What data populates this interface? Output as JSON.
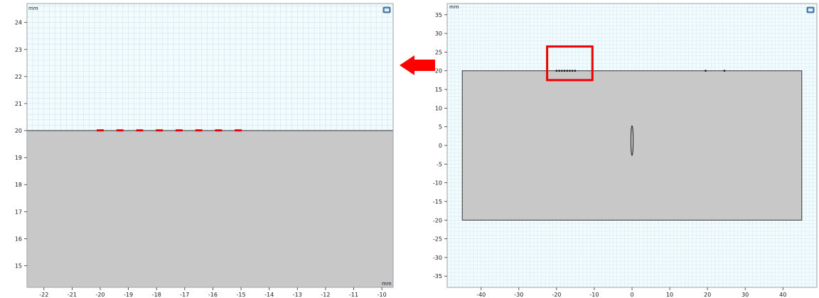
{
  "left_view": {
    "unit_top": "mm",
    "unit_bottom": "mm",
    "x_range": [
      -22.6,
      -9.6
    ],
    "y_range": [
      14.2,
      24.7
    ],
    "x_ticks": [
      "-22",
      "-21",
      "-20",
      "-19",
      "-18",
      "-17",
      "-16",
      "-15",
      "-14",
      "-13",
      "-12",
      "-11",
      "-10"
    ],
    "y_ticks": [
      "15",
      "16",
      "17",
      "18",
      "19",
      "20",
      "21",
      "22",
      "23",
      "24"
    ],
    "surface_y": 20,
    "markers_x": [
      -20.0,
      -19.3,
      -18.6,
      -17.9,
      -17.2,
      -16.5,
      -15.8,
      -15.1
    ],
    "marker_color": "#ee0000",
    "solid_color": "#c8c8c8",
    "grid_color": "#cfe6f0",
    "background": "#f2fbfd"
  },
  "right_view": {
    "unit_top": "mm",
    "x_range": [
      -49,
      49
    ],
    "y_range": [
      -38,
      38
    ],
    "x_ticks": [
      "-40",
      "-30",
      "-20",
      "-10",
      "0",
      "10",
      "20",
      "30",
      "40"
    ],
    "y_ticks": [
      "35",
      "30",
      "25",
      "20",
      "15",
      "10",
      "5",
      "0",
      "-5",
      "-10",
      "-15",
      "-20",
      "-25",
      "-30",
      "-35"
    ],
    "rect": {
      "x0": -45,
      "x1": 45,
      "y0": -20,
      "y1": 20
    },
    "ellipse": {
      "cx": 0,
      "cy": 1.3,
      "rx": 0.3,
      "ry": 4
    },
    "cluster_points_x": [
      -20.0,
      -19.3,
      -18.6,
      -17.9,
      -17.2,
      -16.5,
      -15.8,
      -15.1
    ],
    "isolated_points_x": [
      19.5,
      24.5
    ],
    "highlight": {
      "x0": -22.5,
      "x1": -10.5,
      "y0": 17.5,
      "y1": 26.5
    },
    "highlight_color": "#ee0000"
  },
  "arrow": {
    "color": "#ff0000",
    "direction": "left"
  }
}
